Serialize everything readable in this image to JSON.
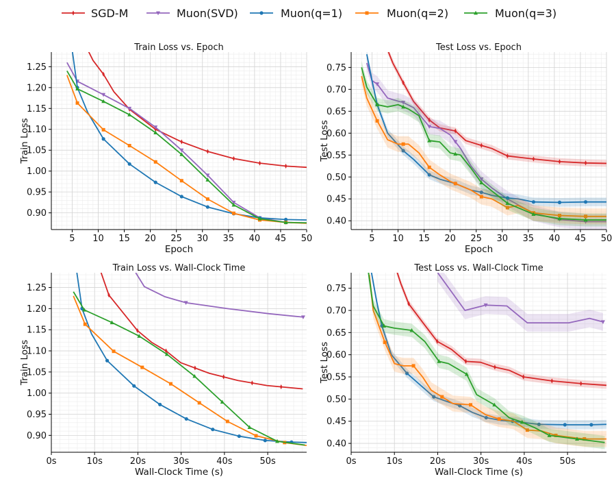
{
  "legend": [
    {
      "name": "SGD-M",
      "color": "#d62728",
      "marker": "thin-diamond"
    },
    {
      "name": "Muon(SVD)",
      "color": "#9467bd",
      "marker": "triangle-down"
    },
    {
      "name": "Muon(q=1)",
      "color": "#1f77b4",
      "marker": "circle"
    },
    {
      "name": "Muon(q=2)",
      "color": "#ff7f0e",
      "marker": "square"
    },
    {
      "name": "Muon(q=3)",
      "color": "#2ca02c",
      "marker": "triangle-up"
    }
  ],
  "chart_data": [
    {
      "type": "line",
      "title": "Train Loss vs. Epoch",
      "xlabel": "Epoch",
      "ylabel": "Train Loss",
      "xlim": [
        1,
        50
      ],
      "ylim": [
        0.86,
        1.285
      ],
      "xticks": [
        5,
        10,
        15,
        20,
        25,
        30,
        35,
        40,
        45,
        50
      ],
      "xticklabels": [
        "5",
        "10",
        "15",
        "20",
        "25",
        "30",
        "35",
        "40",
        "45",
        "50"
      ],
      "yticks": [
        0.9,
        0.95,
        1.0,
        1.05,
        1.1,
        1.15,
        1.2,
        1.25
      ],
      "yticklabels": [
        "0.90",
        "0.95",
        "1.00",
        "1.05",
        "1.10",
        "1.15",
        "1.20",
        "1.25"
      ],
      "grid": true,
      "series": [
        {
          "name": "SGD-M",
          "x": [
            8,
            9,
            11,
            13,
            16,
            21,
            26,
            31,
            36,
            41,
            46,
            50
          ],
          "y": [
            1.29,
            1.265,
            1.232,
            1.19,
            1.148,
            1.1,
            1.07,
            1.047,
            1.03,
            1.019,
            1.012,
            1.009
          ],
          "markers": [
            11,
            16,
            21,
            26,
            31,
            36,
            41,
            46
          ]
        },
        {
          "name": "Muon(SVD)",
          "x": [
            4,
            6,
            11,
            16,
            21,
            26,
            31,
            36,
            41,
            46,
            50
          ],
          "y": [
            1.26,
            1.215,
            1.183,
            1.15,
            1.105,
            1.05,
            0.99,
            0.925,
            0.888,
            0.877,
            0.876
          ],
          "markers": [
            6,
            11,
            16,
            21,
            26,
            31,
            36,
            41,
            46
          ]
        },
        {
          "name": "Muon(q=1)",
          "x": [
            5,
            6,
            8,
            11,
            16,
            21,
            26,
            31,
            36,
            41,
            46,
            50
          ],
          "y": [
            1.29,
            1.2,
            1.14,
            1.077,
            1.017,
            0.973,
            0.939,
            0.914,
            0.898,
            0.888,
            0.884,
            0.883
          ],
          "markers": [
            6,
            11,
            16,
            21,
            26,
            31,
            36,
            41,
            46
          ]
        },
        {
          "name": "Muon(q=2)",
          "x": [
            4,
            6,
            11,
            16,
            21,
            26,
            31,
            36,
            41,
            46,
            50
          ],
          "y": [
            1.23,
            1.163,
            1.099,
            1.061,
            1.022,
            0.977,
            0.933,
            0.899,
            0.883,
            0.877,
            0.875
          ],
          "markers": [
            6,
            11,
            16,
            21,
            26,
            31,
            36,
            41,
            46
          ]
        },
        {
          "name": "Muon(q=3)",
          "x": [
            4,
            6,
            11,
            16,
            21,
            26,
            31,
            36,
            41,
            46,
            50
          ],
          "y": [
            1.24,
            1.197,
            1.167,
            1.135,
            1.092,
            1.04,
            0.979,
            0.919,
            0.886,
            0.877,
            0.876
          ],
          "markers": [
            6,
            11,
            16,
            21,
            26,
            31,
            36,
            41,
            46
          ]
        }
      ]
    },
    {
      "type": "line",
      "title": "Test Loss vs. Epoch",
      "xlabel": "Epoch",
      "ylabel": "Test Loss",
      "xlim": [
        1,
        50
      ],
      "ylim": [
        0.38,
        0.785
      ],
      "xticks": [
        5,
        10,
        15,
        20,
        25,
        30,
        35,
        40,
        45,
        50
      ],
      "xticklabels": [
        "5",
        "10",
        "15",
        "20",
        "25",
        "30",
        "35",
        "40",
        "45",
        "50"
      ],
      "yticks": [
        0.4,
        0.45,
        0.5,
        0.55,
        0.6,
        0.65,
        0.7,
        0.75
      ],
      "yticklabels": [
        "0.40",
        "0.45",
        "0.50",
        "0.55",
        "0.60",
        "0.65",
        "0.70",
        "0.75"
      ],
      "grid": true,
      "series": [
        {
          "name": "SGD-M",
          "x": [
            8,
            9,
            11,
            13,
            16,
            18,
            21,
            23,
            26,
            28,
            31,
            36,
            41,
            46,
            50
          ],
          "y": [
            0.79,
            0.76,
            0.715,
            0.672,
            0.63,
            0.612,
            0.605,
            0.583,
            0.572,
            0.565,
            0.548,
            0.541,
            0.535,
            0.532,
            0.531
          ],
          "band": 0.008,
          "markers": [
            11,
            16,
            21,
            26,
            31,
            36,
            41,
            46
          ]
        },
        {
          "name": "Muon(SVD)",
          "x": [
            4,
            5,
            6,
            8,
            10,
            11,
            13,
            16,
            18,
            20,
            22,
            24,
            26,
            28,
            31,
            36,
            41,
            46,
            50
          ],
          "y": [
            0.76,
            0.72,
            0.712,
            0.68,
            0.673,
            0.67,
            0.658,
            0.615,
            0.611,
            0.596,
            0.565,
            0.525,
            0.495,
            0.475,
            0.45,
            0.417,
            0.403,
            0.398,
            0.398
          ],
          "band": 0.018,
          "markers": [
            6,
            11,
            16,
            21,
            26,
            31,
            36,
            41,
            46
          ]
        },
        {
          "name": "Muon(q=1)",
          "x": [
            4,
            5,
            6,
            8,
            11,
            13,
            16,
            18,
            21,
            24,
            26,
            28,
            31,
            33,
            36,
            41,
            46,
            50
          ],
          "y": [
            0.78,
            0.72,
            0.665,
            0.6,
            0.56,
            0.54,
            0.505,
            0.495,
            0.485,
            0.47,
            0.465,
            0.458,
            0.452,
            0.45,
            0.443,
            0.442,
            0.443,
            0.443
          ],
          "band": 0.01,
          "markers": [
            6,
            11,
            16,
            21,
            26,
            31,
            36,
            41,
            46
          ]
        },
        {
          "name": "Muon(q=2)",
          "x": [
            3,
            4,
            6,
            8,
            10,
            12,
            14,
            16,
            18,
            20,
            22,
            24,
            26,
            28,
            31,
            33,
            36,
            41,
            46,
            50
          ],
          "y": [
            0.73,
            0.68,
            0.628,
            0.585,
            0.575,
            0.575,
            0.555,
            0.522,
            0.505,
            0.49,
            0.48,
            0.47,
            0.455,
            0.45,
            0.43,
            0.435,
            0.418,
            0.412,
            0.41,
            0.41
          ],
          "band": 0.018,
          "markers": [
            6,
            11,
            16,
            21,
            26,
            31,
            36,
            41,
            46
          ]
        },
        {
          "name": "Muon(q=3)",
          "x": [
            3,
            4,
            6,
            8,
            10,
            12,
            14,
            16,
            18,
            20,
            22,
            24,
            26,
            28,
            31,
            33,
            36,
            41,
            46,
            50
          ],
          "y": [
            0.75,
            0.705,
            0.665,
            0.66,
            0.665,
            0.655,
            0.64,
            0.583,
            0.58,
            0.555,
            0.55,
            0.52,
            0.487,
            0.468,
            0.44,
            0.43,
            0.415,
            0.405,
            0.402,
            0.402
          ],
          "band": 0.015,
          "markers": [
            6,
            11,
            16,
            21,
            26,
            31,
            36,
            41,
            46
          ]
        }
      ]
    },
    {
      "type": "line",
      "title": "Train Loss vs. Wall-Clock Time",
      "xlabel": "Wall-Clock Time (s)",
      "ylabel": "Train Loss",
      "xlim": [
        0,
        59
      ],
      "ylim": [
        0.86,
        1.285
      ],
      "xticks": [
        0,
        10,
        20,
        30,
        40,
        50
      ],
      "xticklabels": [
        "0s",
        "10s",
        "20s",
        "30s",
        "40s",
        "50s"
      ],
      "yticks": [
        0.9,
        0.95,
        1.0,
        1.05,
        1.1,
        1.15,
        1.2,
        1.25
      ],
      "yticklabels": [
        "0.90",
        "0.95",
        "1.00",
        "1.05",
        "1.10",
        "1.15",
        "1.20",
        "1.25"
      ],
      "grid": true,
      "series": [
        {
          "name": "SGD-M",
          "x": [
            11.5,
            13.3,
            16.6,
            19.9,
            23.2,
            26.5,
            29.9,
            36.5,
            43.1,
            49.8,
            58.1
          ],
          "y": [
            1.285,
            1.232,
            1.19,
            1.148,
            1.12,
            1.1,
            1.072,
            1.047,
            1.03,
            1.018,
            1.01
          ],
          "markers": [
            13.3,
            19.9,
            26.5,
            33.2,
            39.8,
            46.4,
            53.1
          ]
        },
        {
          "name": "Muon(SVD)",
          "x": [
            19.5,
            21.5,
            26.3,
            31.1,
            40.7,
            50.3,
            58.2
          ],
          "y": [
            1.285,
            1.252,
            1.228,
            1.214,
            1.2,
            1.188,
            1.18
          ],
          "markers": [
            31.1,
            58.2
          ]
        },
        {
          "name": "Muon(q=1)",
          "x": [
            5.9,
            7.1,
            9.3,
            12.9,
            19.1,
            25.1,
            31.2,
            37.3,
            43.4,
            49.4,
            55.5,
            59
          ],
          "y": [
            1.285,
            1.2,
            1.14,
            1.077,
            1.017,
            0.973,
            0.939,
            0.914,
            0.898,
            0.888,
            0.884,
            0.883
          ],
          "markers": [
            7.1,
            12.9,
            19.1,
            25.1,
            31.2,
            37.3,
            43.4,
            49.4,
            55.5
          ]
        },
        {
          "name": "Muon(q=2)",
          "x": [
            5.1,
            7.8,
            14.4,
            21.0,
            27.6,
            34.2,
            40.7,
            47.3,
            53.9,
            59
          ],
          "y": [
            1.23,
            1.163,
            1.099,
            1.061,
            1.022,
            0.977,
            0.933,
            0.899,
            0.883,
            0.876
          ],
          "markers": [
            7.8,
            14.4,
            21.0,
            27.6,
            34.2,
            40.7,
            47.3,
            53.9
          ]
        },
        {
          "name": "Muon(q=3)",
          "x": [
            5.1,
            7.6,
            14.0,
            20.3,
            26.7,
            33.1,
            39.5,
            45.8,
            52.2,
            58.6
          ],
          "y": [
            1.24,
            1.197,
            1.167,
            1.135,
            1.092,
            1.04,
            0.979,
            0.919,
            0.886,
            0.877
          ],
          "markers": [
            7.6,
            14.0,
            20.3,
            26.7,
            33.1,
            39.5,
            45.8,
            52.2
          ]
        }
      ]
    },
    {
      "type": "line",
      "title": "Test Loss vs. Wall-Clock Time",
      "xlabel": "Wall-Clock Time (s)",
      "ylabel": "Test Loss",
      "xlim": [
        0,
        59
      ],
      "ylim": [
        0.38,
        0.785
      ],
      "xticks": [
        0,
        10,
        20,
        30,
        40,
        50
      ],
      "xticklabels": [
        "0s",
        "10s",
        "20s",
        "30s",
        "40s",
        "50s"
      ],
      "yticks": [
        0.4,
        0.45,
        0.5,
        0.55,
        0.6,
        0.65,
        0.7,
        0.75
      ],
      "yticklabels": [
        "0.40",
        "0.45",
        "0.50",
        "0.55",
        "0.60",
        "0.65",
        "0.70",
        "0.75"
      ],
      "grid": true,
      "series": [
        {
          "name": "SGD-M",
          "x": [
            10.5,
            11.5,
            13.3,
            16.6,
            19.9,
            23.2,
            26.5,
            29.9,
            33.2,
            36.5,
            39.8,
            46.4,
            53.1,
            59
          ],
          "y": [
            0.79,
            0.76,
            0.715,
            0.672,
            0.63,
            0.612,
            0.585,
            0.583,
            0.572,
            0.565,
            0.55,
            0.541,
            0.535,
            0.531
          ],
          "band": 0.008,
          "markers": [
            13.3,
            19.9,
            26.5,
            33.2,
            39.8,
            46.4,
            53.1
          ]
        },
        {
          "name": "Muon(SVD)",
          "x": [
            20.0,
            26.3,
            31.1,
            36.0,
            40.7,
            45.5,
            50.3,
            55.1,
            58.2
          ],
          "y": [
            0.785,
            0.7,
            0.712,
            0.71,
            0.672,
            0.672,
            0.672,
            0.682,
            0.674
          ],
          "band": 0.02,
          "markers": [
            31.1,
            58.2
          ]
        },
        {
          "name": "Muon(q=1)",
          "x": [
            4.7,
            5.9,
            7.1,
            9.3,
            12.9,
            15.0,
            19.1,
            22.0,
            25.1,
            28.0,
            31.2,
            34.5,
            37.3,
            43.4,
            49.4,
            55.5,
            59
          ],
          "y": [
            0.785,
            0.72,
            0.665,
            0.6,
            0.558,
            0.54,
            0.505,
            0.495,
            0.485,
            0.47,
            0.458,
            0.452,
            0.45,
            0.443,
            0.442,
            0.442,
            0.443
          ],
          "band": 0.01,
          "markers": [
            7.1,
            12.9,
            19.1,
            25.1,
            31.2,
            37.3,
            43.4,
            49.4,
            55.5
          ]
        },
        {
          "name": "Muon(q=2)",
          "x": [
            4.2,
            5.1,
            7.8,
            10.0,
            12.0,
            14.4,
            16.5,
            18.5,
            21.0,
            23.5,
            27.6,
            31.0,
            34.2,
            37.5,
            40.7,
            44.0,
            47.3,
            53.9,
            59
          ],
          "y": [
            0.78,
            0.7,
            0.628,
            0.58,
            0.575,
            0.575,
            0.55,
            0.52,
            0.505,
            0.49,
            0.487,
            0.465,
            0.455,
            0.45,
            0.43,
            0.428,
            0.418,
            0.41,
            0.41
          ],
          "band": 0.018,
          "markers": [
            7.8,
            14.4,
            21.0,
            27.6,
            34.2,
            40.7,
            47.3,
            53.9
          ]
        },
        {
          "name": "Muon(q=3)",
          "x": [
            4.0,
            5.1,
            7.6,
            10.0,
            14.0,
            17.0,
            20.3,
            22.5,
            26.7,
            29.0,
            33.1,
            36.5,
            39.5,
            42.5,
            45.8,
            52.2,
            58.6
          ],
          "y": [
            0.785,
            0.71,
            0.665,
            0.66,
            0.655,
            0.63,
            0.585,
            0.58,
            0.556,
            0.51,
            0.487,
            0.458,
            0.448,
            0.435,
            0.418,
            0.41,
            0.402
          ],
          "band": 0.015,
          "markers": [
            7.6,
            14.0,
            20.3,
            26.7,
            33.1,
            39.5,
            45.8,
            52.2
          ]
        }
      ]
    }
  ]
}
